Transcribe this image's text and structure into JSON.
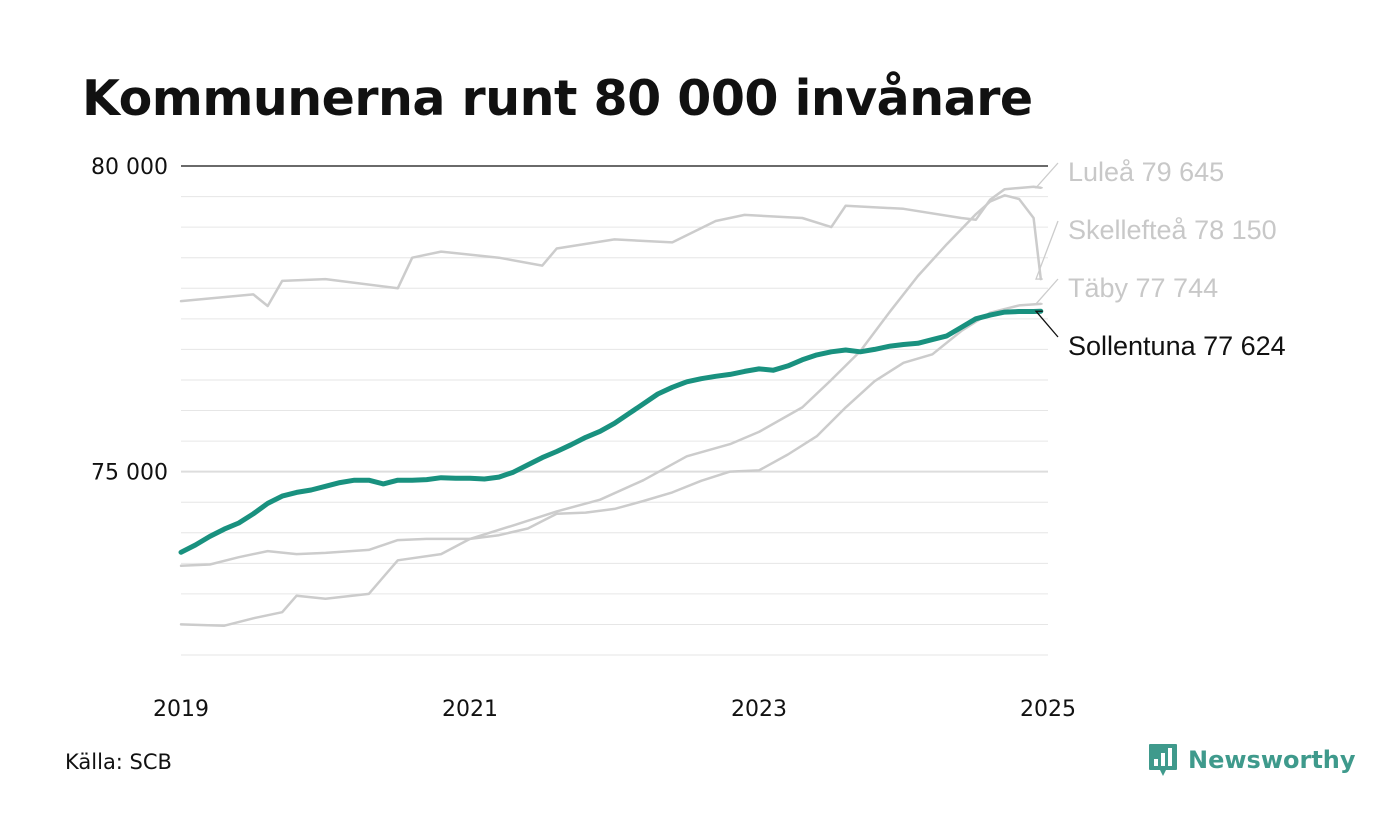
{
  "title": "Kommunerna runt 80 000 invånare",
  "source": "Källa: SCB",
  "brand": {
    "name": "Newsworthy",
    "icon": "newsworthy-logo-icon",
    "color": "#3f9a8c"
  },
  "chart_data": {
    "type": "line",
    "title": "Kommunerna runt 80 000 invånare",
    "xlabel": "",
    "ylabel": "",
    "xlim": [
      2019,
      2025
    ],
    "ylim": [
      72000,
      80000
    ],
    "x_ticks": [
      {
        "value": 2019,
        "label": "2019"
      },
      {
        "value": 2021,
        "label": "2021"
      },
      {
        "value": 2023,
        "label": "2023"
      },
      {
        "value": 2025,
        "label": "2025"
      }
    ],
    "y_ticks": [
      {
        "value": 75000,
        "label": "75 000"
      },
      {
        "value": 80000,
        "label": "80 000"
      }
    ],
    "grid": true,
    "legend": "end-labels",
    "series": [
      {
        "name": "Luleå",
        "end_label": "Luleå 79 645",
        "color": "#cccccc",
        "highlight": false,
        "points": [
          [
            2019,
            77790
          ],
          [
            2019.5,
            77900
          ],
          [
            2019.6,
            77710
          ],
          [
            2019.7,
            78120
          ],
          [
            2020.0,
            78150
          ],
          [
            2020.5,
            78000
          ],
          [
            2020.6,
            78500
          ],
          [
            2020.8,
            78600
          ],
          [
            2021.2,
            78500
          ],
          [
            2021.5,
            78370
          ],
          [
            2021.6,
            78650
          ],
          [
            2022.0,
            78800
          ],
          [
            2022.4,
            78750
          ],
          [
            2022.7,
            79100
          ],
          [
            2022.9,
            79200
          ],
          [
            2023.3,
            79150
          ],
          [
            2023.5,
            79000
          ],
          [
            2023.6,
            79350
          ],
          [
            2024.0,
            79300
          ],
          [
            2024.4,
            79150
          ],
          [
            2024.5,
            79120
          ],
          [
            2024.6,
            79450
          ],
          [
            2024.7,
            79620
          ],
          [
            2024.8,
            79640
          ],
          [
            2024.9,
            79660
          ],
          [
            2024.95,
            79645
          ]
        ]
      },
      {
        "name": "Skellefteå",
        "end_label": "Skellefteå 78 150",
        "color": "#cccccc",
        "highlight": false,
        "points": [
          [
            2019,
            72500
          ],
          [
            2019.3,
            72480
          ],
          [
            2019.5,
            72600
          ],
          [
            2019.7,
            72700
          ],
          [
            2019.8,
            72970
          ],
          [
            2020.0,
            72920
          ],
          [
            2020.3,
            73000
          ],
          [
            2020.5,
            73550
          ],
          [
            2020.8,
            73650
          ],
          [
            2021.0,
            73900
          ],
          [
            2021.3,
            74120
          ],
          [
            2021.6,
            74350
          ],
          [
            2021.9,
            74540
          ],
          [
            2022.2,
            74860
          ],
          [
            2022.5,
            75250
          ],
          [
            2022.8,
            75450
          ],
          [
            2023.0,
            75650
          ],
          [
            2023.3,
            76050
          ],
          [
            2023.5,
            76500
          ],
          [
            2023.7,
            76970
          ],
          [
            2023.9,
            77600
          ],
          [
            2024.1,
            78200
          ],
          [
            2024.3,
            78720
          ],
          [
            2024.5,
            79210
          ],
          [
            2024.6,
            79420
          ],
          [
            2024.7,
            79520
          ],
          [
            2024.8,
            79460
          ],
          [
            2024.9,
            79150
          ],
          [
            2024.95,
            78150
          ]
        ]
      },
      {
        "name": "Täby",
        "end_label": "Täby 77 744",
        "color": "#cccccc",
        "highlight": false,
        "points": [
          [
            2019,
            73460
          ],
          [
            2019.2,
            73480
          ],
          [
            2019.4,
            73600
          ],
          [
            2019.6,
            73700
          ],
          [
            2019.8,
            73650
          ],
          [
            2020.0,
            73670
          ],
          [
            2020.3,
            73720
          ],
          [
            2020.5,
            73880
          ],
          [
            2020.7,
            73900
          ],
          [
            2021.0,
            73900
          ],
          [
            2021.2,
            73960
          ],
          [
            2021.4,
            74070
          ],
          [
            2021.6,
            74310
          ],
          [
            2021.8,
            74330
          ],
          [
            2022.0,
            74390
          ],
          [
            2022.2,
            74520
          ],
          [
            2022.4,
            74660
          ],
          [
            2022.6,
            74850
          ],
          [
            2022.8,
            75000
          ],
          [
            2023.0,
            75020
          ],
          [
            2023.2,
            75280
          ],
          [
            2023.4,
            75580
          ],
          [
            2023.6,
            76050
          ],
          [
            2023.8,
            76480
          ],
          [
            2024.0,
            76780
          ],
          [
            2024.2,
            76920
          ],
          [
            2024.4,
            77300
          ],
          [
            2024.6,
            77600
          ],
          [
            2024.8,
            77720
          ],
          [
            2024.95,
            77744
          ]
        ]
      },
      {
        "name": "Sollentuna",
        "end_label": "Sollentuna 77 624",
        "color": "#19917f",
        "highlight": true,
        "points": [
          [
            2019,
            73680
          ],
          [
            2019.1,
            73800
          ],
          [
            2019.2,
            73940
          ],
          [
            2019.3,
            74060
          ],
          [
            2019.4,
            74160
          ],
          [
            2019.5,
            74310
          ],
          [
            2019.6,
            74480
          ],
          [
            2019.7,
            74600
          ],
          [
            2019.8,
            74660
          ],
          [
            2019.9,
            74700
          ],
          [
            2020.0,
            74760
          ],
          [
            2020.1,
            74820
          ],
          [
            2020.2,
            74860
          ],
          [
            2020.3,
            74860
          ],
          [
            2020.4,
            74800
          ],
          [
            2020.5,
            74860
          ],
          [
            2020.6,
            74860
          ],
          [
            2020.7,
            74870
          ],
          [
            2020.8,
            74900
          ],
          [
            2020.9,
            74890
          ],
          [
            2021.0,
            74890
          ],
          [
            2021.1,
            74880
          ],
          [
            2021.2,
            74910
          ],
          [
            2021.3,
            74990
          ],
          [
            2021.4,
            75110
          ],
          [
            2021.5,
            75230
          ],
          [
            2021.6,
            75330
          ],
          [
            2021.7,
            75440
          ],
          [
            2021.8,
            75560
          ],
          [
            2021.9,
            75660
          ],
          [
            2022.0,
            75790
          ],
          [
            2022.1,
            75950
          ],
          [
            2022.2,
            76110
          ],
          [
            2022.3,
            76270
          ],
          [
            2022.4,
            76380
          ],
          [
            2022.5,
            76470
          ],
          [
            2022.6,
            76520
          ],
          [
            2022.7,
            76560
          ],
          [
            2022.8,
            76590
          ],
          [
            2022.9,
            76640
          ],
          [
            2023.0,
            76680
          ],
          [
            2023.1,
            76660
          ],
          [
            2023.2,
            76730
          ],
          [
            2023.3,
            76830
          ],
          [
            2023.4,
            76910
          ],
          [
            2023.5,
            76960
          ],
          [
            2023.6,
            76990
          ],
          [
            2023.7,
            76960
          ],
          [
            2023.8,
            77000
          ],
          [
            2023.9,
            77050
          ],
          [
            2024.0,
            77080
          ],
          [
            2024.1,
            77100
          ],
          [
            2024.2,
            77160
          ],
          [
            2024.3,
            77220
          ],
          [
            2024.4,
            77360
          ],
          [
            2024.5,
            77500
          ],
          [
            2024.6,
            77560
          ],
          [
            2024.7,
            77610
          ],
          [
            2024.8,
            77620
          ],
          [
            2024.9,
            77620
          ],
          [
            2024.95,
            77624
          ]
        ]
      }
    ]
  }
}
